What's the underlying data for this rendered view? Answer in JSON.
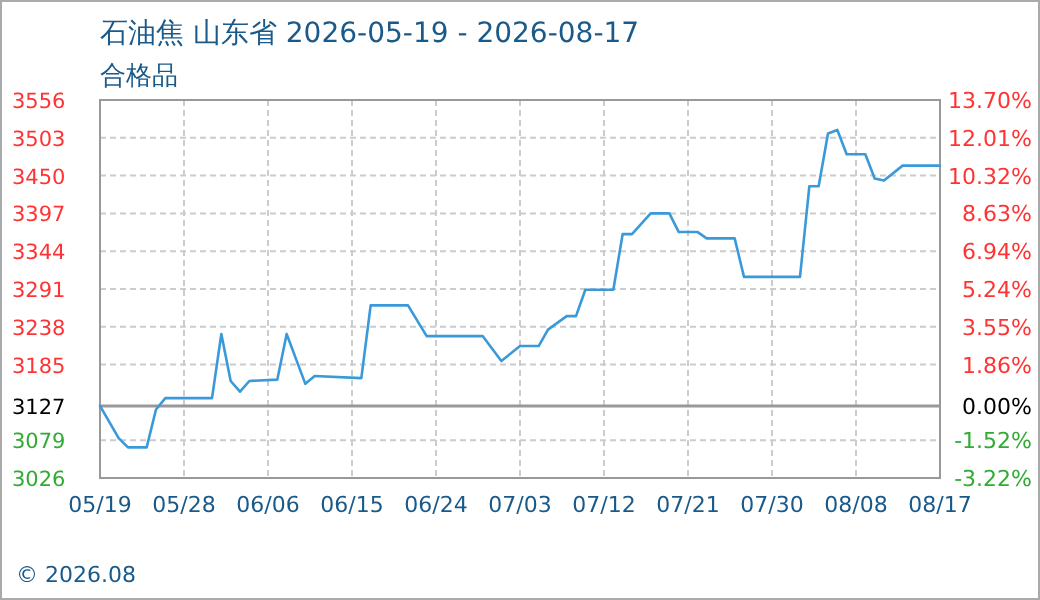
{
  "chart_data": {
    "type": "line",
    "title": "石油焦 山东省 2026-05-19 - 2026-08-17",
    "subtitle": "合格品",
    "x": [
      "2026-05-19",
      "2026-05-21",
      "2026-05-22",
      "2026-05-24",
      "2026-05-25",
      "2026-05-26",
      "2026-05-31",
      "2026-06-01",
      "2026-06-02",
      "2026-06-03",
      "2026-06-04",
      "2026-06-07",
      "2026-06-08",
      "2026-06-10",
      "2026-06-11",
      "2026-06-16",
      "2026-06-17",
      "2026-06-21",
      "2026-06-23",
      "2026-06-29",
      "2026-07-01",
      "2026-07-03",
      "2026-07-05",
      "2026-07-06",
      "2026-07-08",
      "2026-07-09",
      "2026-07-10",
      "2026-07-13",
      "2026-07-14",
      "2026-07-15",
      "2026-07-17",
      "2026-07-19",
      "2026-07-20",
      "2026-07-22",
      "2026-07-23",
      "2026-07-26",
      "2026-07-27",
      "2026-08-02",
      "2026-08-03",
      "2026-08-04",
      "2026-08-05",
      "2026-08-06",
      "2026-08-07",
      "2026-08-09",
      "2026-08-10",
      "2026-08-11",
      "2026-08-13",
      "2026-08-17"
    ],
    "series": [
      {
        "color": "#3a9ad9",
        "values": [
          3127,
          3082,
          3069,
          3069,
          3122,
          3138,
          3138,
          3228,
          3162,
          3147,
          3162,
          3164,
          3228,
          3158,
          3169,
          3166,
          3268,
          3268,
          3225,
          3225,
          3190,
          3211,
          3211,
          3234,
          3253,
          3253,
          3290,
          3290,
          3368,
          3368,
          3397,
          3397,
          3371,
          3371,
          3362,
          3362,
          3308,
          3308,
          3435,
          3435,
          3509,
          3514,
          3480,
          3480,
          3446,
          3443,
          3464,
          3464
        ]
      }
    ],
    "xlim": [
      "2026-05-19",
      "2026-08-17"
    ],
    "xticks": [
      {
        "value": "2026-05-19",
        "label": "05/19"
      },
      {
        "value": "2026-05-28",
        "label": "05/28"
      },
      {
        "value": "2026-06-06",
        "label": "06/06"
      },
      {
        "value": "2026-06-15",
        "label": "06/15"
      },
      {
        "value": "2026-06-24",
        "label": "06/24"
      },
      {
        "value": "2026-07-03",
        "label": "07/03"
      },
      {
        "value": "2026-07-12",
        "label": "07/12"
      },
      {
        "value": "2026-07-21",
        "label": "07/21"
      },
      {
        "value": "2026-07-30",
        "label": "07/30"
      },
      {
        "value": "2026-08-08",
        "label": "08/08"
      },
      {
        "value": "2026-08-17",
        "label": "08/17"
      }
    ],
    "ylim": [
      3026,
      3556
    ],
    "yticks": [
      3026,
      3079,
      3127,
      3185,
      3238,
      3291,
      3344,
      3397,
      3450,
      3503,
      3556
    ],
    "y2lim": [
      -3.22,
      13.7
    ],
    "y2ticks": [
      {
        "value": -3.22,
        "label": "-3.22%"
      },
      {
        "value": -1.52,
        "label": "-1.52%"
      },
      {
        "value": 0,
        "label": "0.00%"
      },
      {
        "value": 1.86,
        "label": "1.86%"
      },
      {
        "value": 3.55,
        "label": "3.55%"
      },
      {
        "value": 5.24,
        "label": "5.24%"
      },
      {
        "value": 6.94,
        "label": "6.94%"
      },
      {
        "value": 8.63,
        "label": "8.63%"
      },
      {
        "value": 10.32,
        "label": "10.32%"
      },
      {
        "value": 12.01,
        "label": "12.01%"
      },
      {
        "value": 13.7,
        "label": "13.70%"
      }
    ],
    "ref_lines": [
      {
        "axis": "y",
        "value": 3127,
        "color": "#999999"
      }
    ],
    "grid": true,
    "marker": "none",
    "line_style": "solid",
    "annotations": [
      "© 2026.08"
    ]
  }
}
